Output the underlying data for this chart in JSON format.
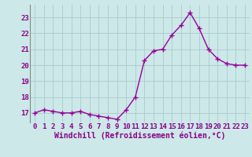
{
  "hours": [
    0,
    1,
    2,
    3,
    4,
    5,
    6,
    7,
    8,
    9,
    10,
    11,
    12,
    13,
    14,
    15,
    16,
    17,
    18,
    19,
    20,
    21,
    22,
    23
  ],
  "windchill": [
    17.0,
    17.2,
    17.1,
    17.0,
    17.0,
    17.1,
    16.9,
    16.8,
    16.7,
    16.6,
    17.2,
    18.0,
    20.3,
    20.9,
    21.0,
    21.9,
    22.5,
    23.3,
    22.3,
    21.0,
    20.4,
    20.1,
    20.0,
    20.0
  ],
  "line_color": "#990099",
  "marker": "+",
  "markersize": 4,
  "linewidth": 1.0,
  "bg_color": "#cce8e8",
  "grid_color": "#aacccc",
  "xlabel": "Windchill (Refroidissement éolien,°C)",
  "xlabel_fontsize": 7,
  "yticks": [
    17,
    18,
    19,
    20,
    21,
    22,
    23
  ],
  "xticks": [
    0,
    1,
    2,
    3,
    4,
    5,
    6,
    7,
    8,
    9,
    10,
    11,
    12,
    13,
    14,
    15,
    16,
    17,
    18,
    19,
    20,
    21,
    22,
    23
  ],
  "ylim": [
    16.4,
    23.8
  ],
  "xlim": [
    -0.5,
    23.5
  ],
  "tick_fontsize": 6.5,
  "tick_color": "#880088",
  "label_color": "#880088"
}
